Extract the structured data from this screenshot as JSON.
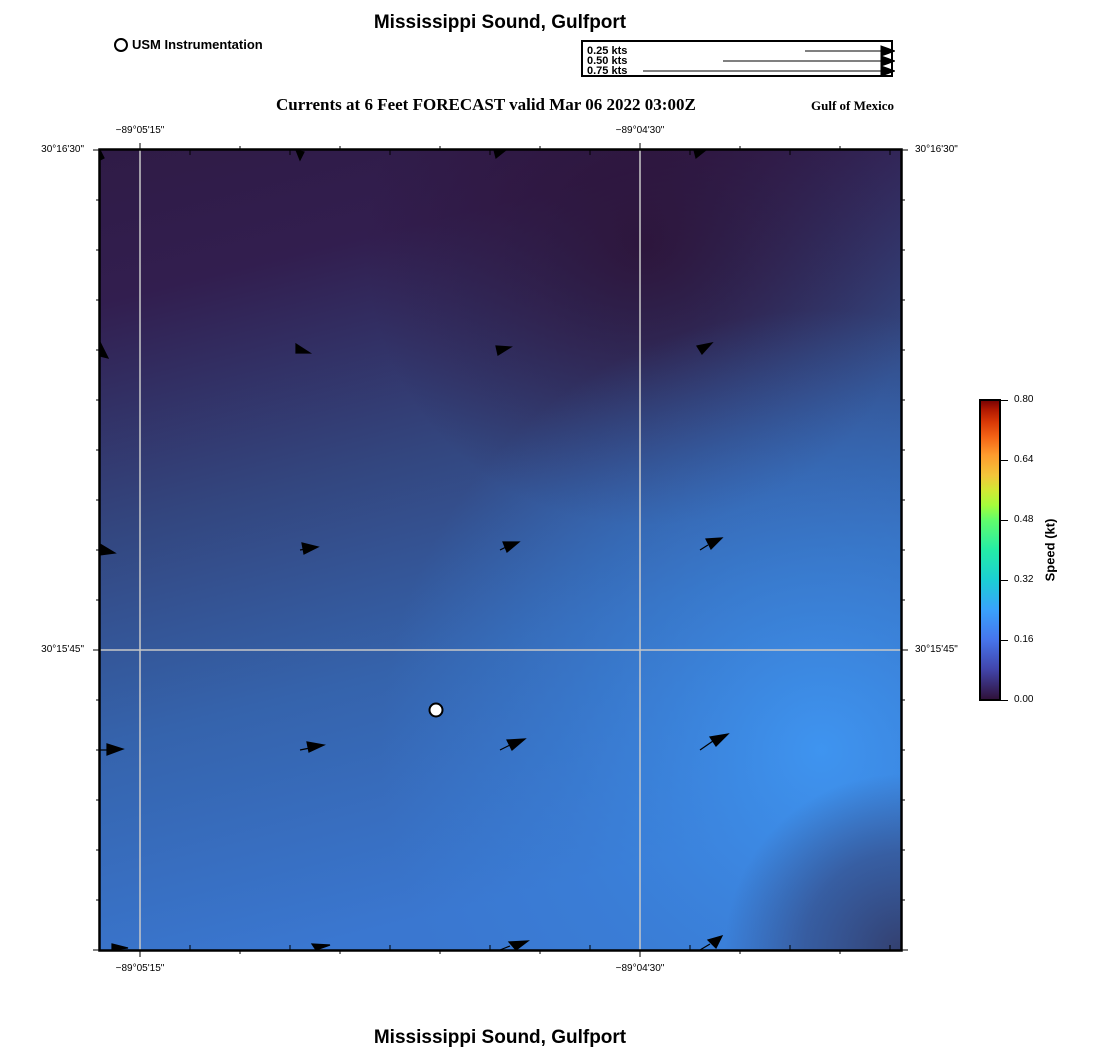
{
  "header": {
    "title": "Mississippi Sound, Gulfport",
    "subtitle": "Currents at 6 Feet FORECAST valid Mar 06 2022 03:00Z",
    "region": "Gulf of Mexico",
    "footer_title": "Mississippi Sound, Gulfport"
  },
  "legend": {
    "station_label": "USM Instrumentation"
  },
  "vector_scale": {
    "entries": [
      {
        "label": "0.25 kts",
        "speed_kt": 0.25
      },
      {
        "label": "0.50 kts",
        "speed_kt": 0.5
      },
      {
        "label": "0.75 kts",
        "speed_kt": 0.75
      }
    ]
  },
  "map": {
    "lon_ticks_top": [
      "−89°05'15\"",
      "−89°04'30\""
    ],
    "lon_ticks_bottom": [
      "−89°05'15\"",
      "−89°04'30\""
    ],
    "lat_ticks_left": [
      "30°16'30\"",
      "30°15'45\""
    ],
    "lat_ticks_right": [
      "30°16'30\"",
      "30°15'45\""
    ]
  },
  "colorbar": {
    "label": "Speed (kt)",
    "ticks": [
      "0.80",
      "0.64",
      "0.48",
      "0.32",
      "0.16",
      "0.00"
    ],
    "min": 0.0,
    "max": 0.8
  },
  "colors": {
    "dark_field": "#301b45",
    "mid_field": "#34508f",
    "light_field": "#3c8ee8",
    "grid": "#c8c8c8"
  }
}
